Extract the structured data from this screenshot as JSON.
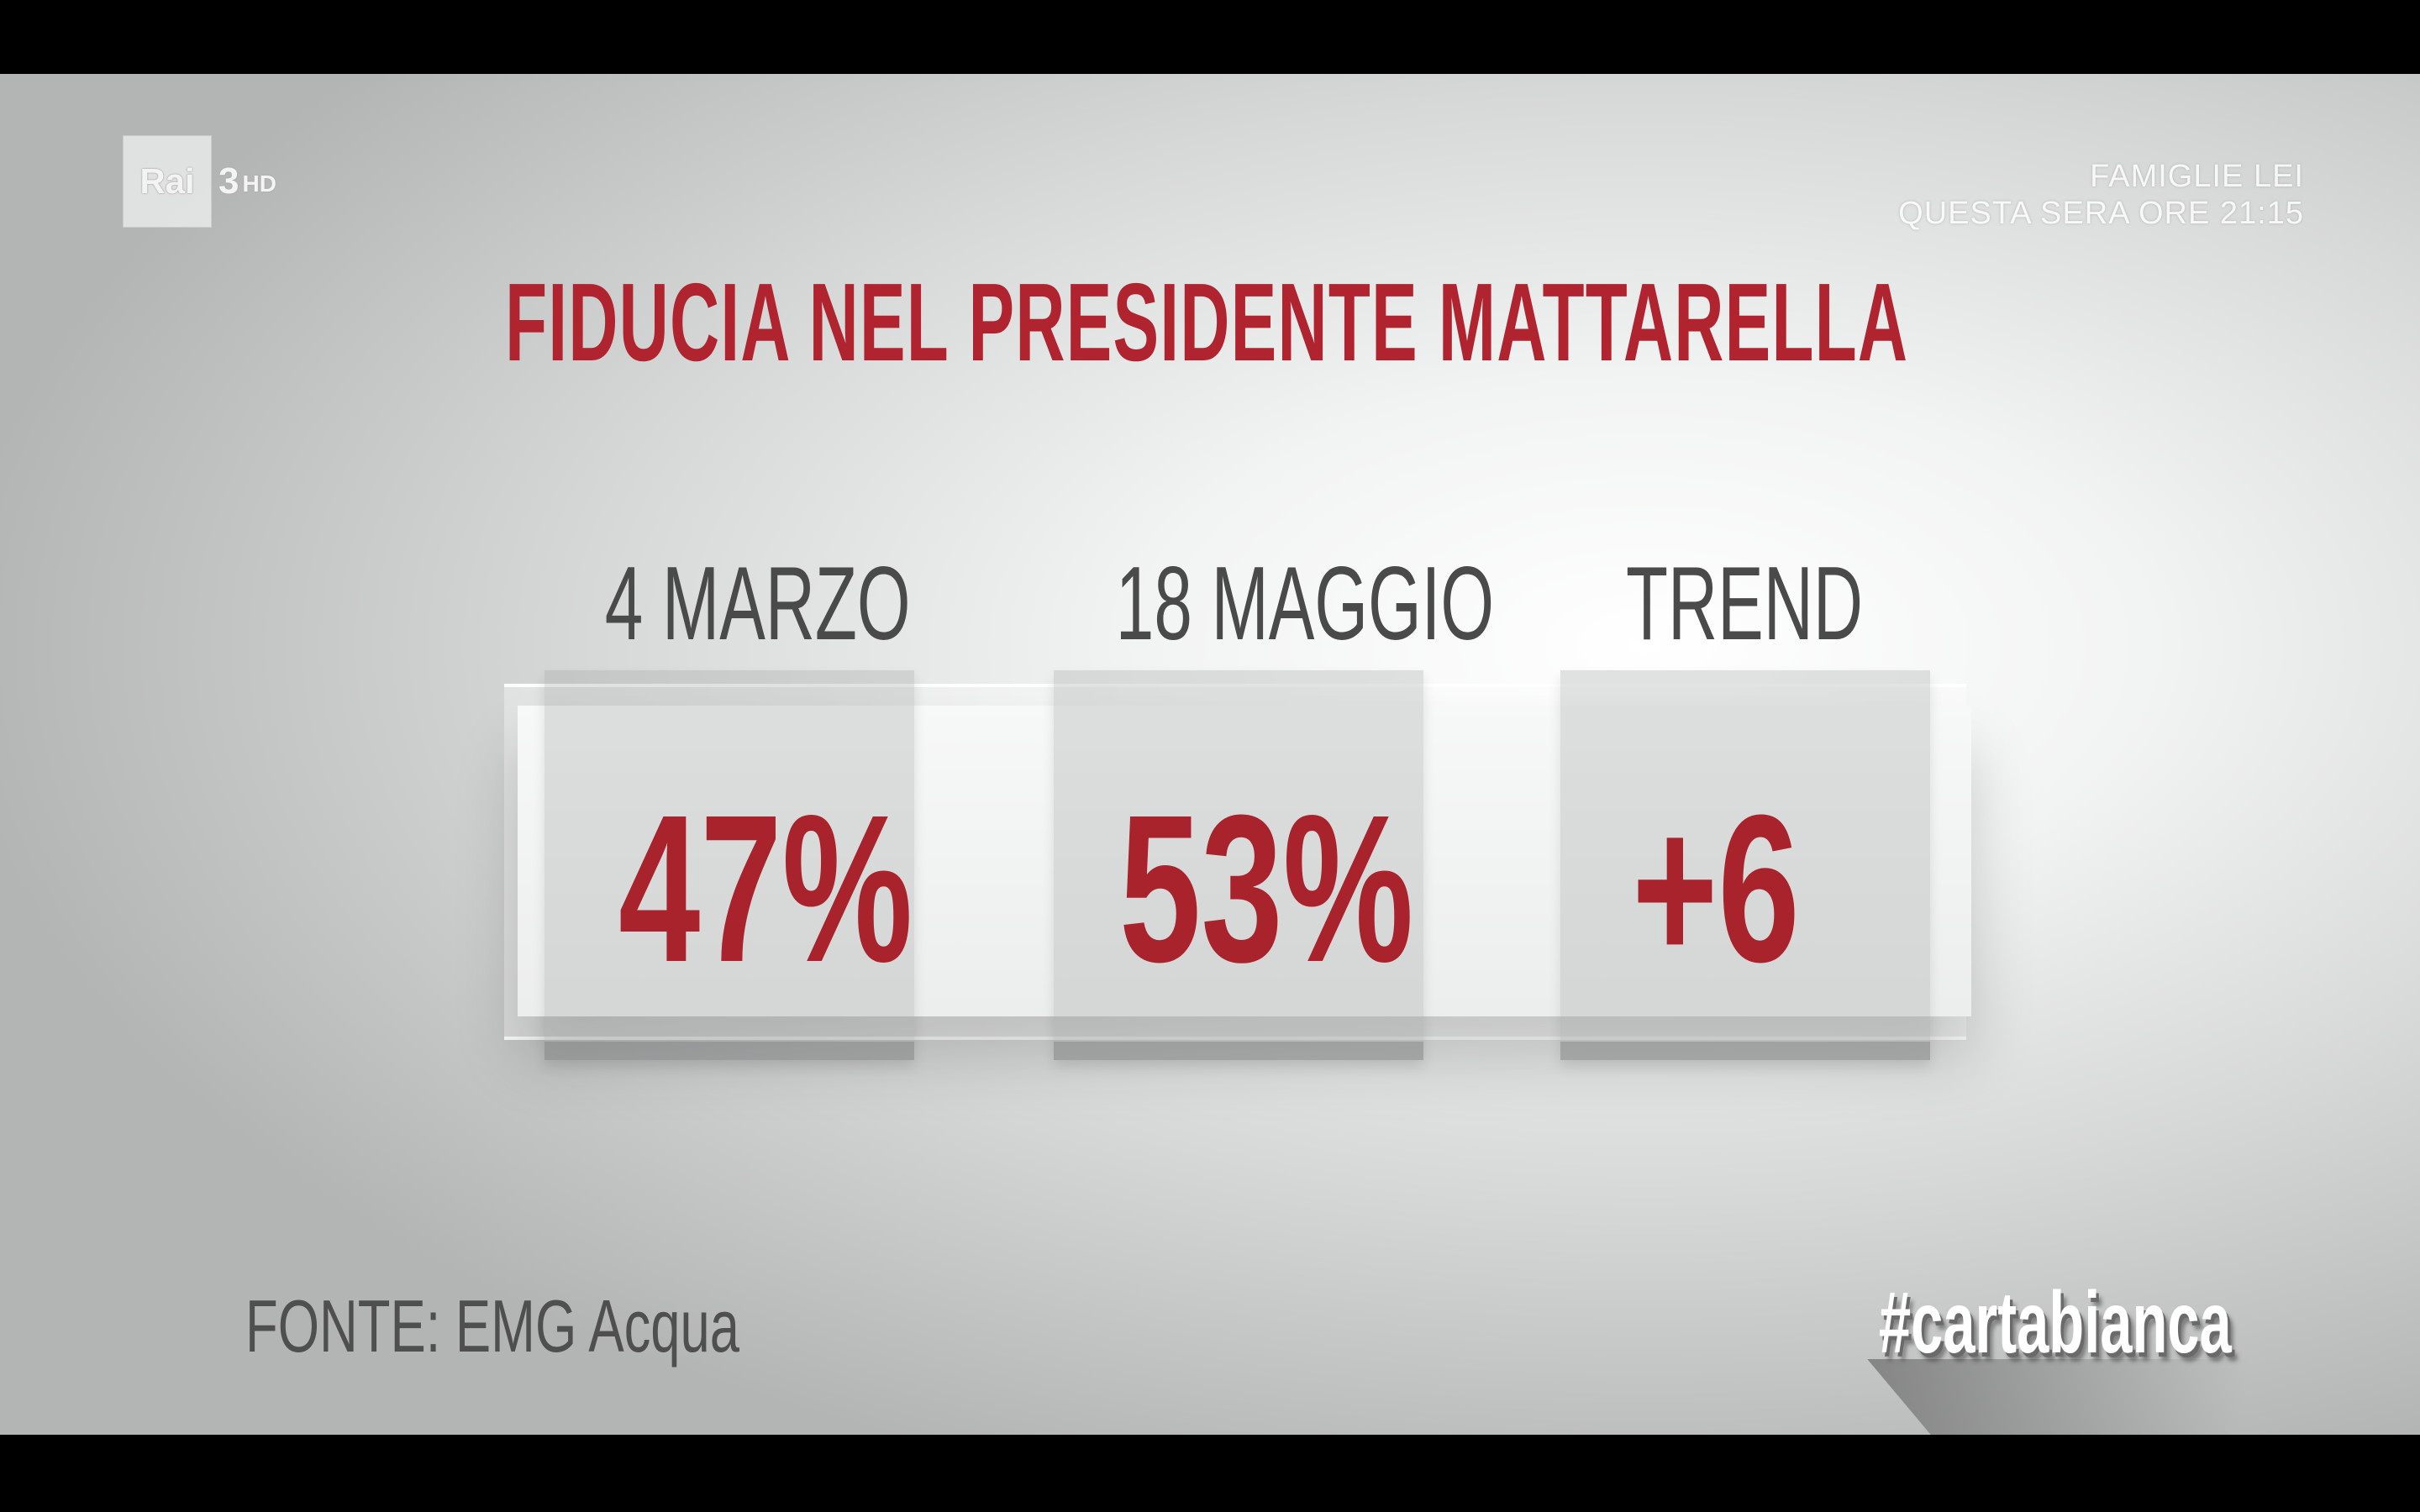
{
  "broadcast": {
    "logo_text": "Rai",
    "channel": "3",
    "quality": "HD",
    "promo_line_1": "FAMIGLIE LEI",
    "promo_line_2": "QUESTA SERA ORE 21:15"
  },
  "graphic": {
    "title": "FIDUCIA NEL PRESIDENTE MATTARELLA",
    "columns": [
      {
        "label": "4 MARZO",
        "value": "47%"
      },
      {
        "label": "18 MAGGIO",
        "value": "53%"
      },
      {
        "label": "TREND",
        "value": "+6"
      }
    ],
    "source": "FONTE: EMG Acqua",
    "hashtag": "#cartabianca"
  },
  "colors": {
    "accent_red": "#a8232c",
    "label_gray": "#4a4a4a"
  }
}
